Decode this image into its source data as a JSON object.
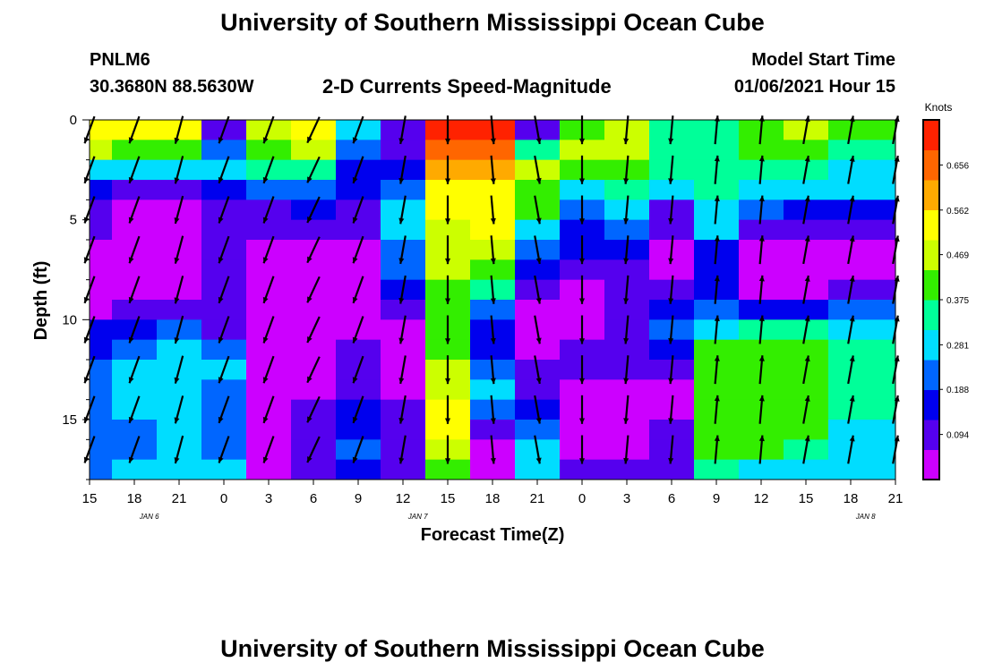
{
  "header": {
    "title": "University of Southern Mississippi Ocean Cube",
    "station": "PNLM6",
    "coords": "30.3680N 88.5630W",
    "subtitle": "2-D Currents Speed-Magnitude",
    "model_label": "Model Start Time",
    "model_time": "01/06/2021 Hour 15",
    "footer_title": "University of Southern Mississippi Ocean Cube"
  },
  "colors": {
    "scale": [
      "#cc00ff",
      "#5500ee",
      "#0000ee",
      "#0066ff",
      "#00ddff",
      "#00ff99",
      "#33ee00",
      "#ccff00",
      "#ffff00",
      "#ffaa00",
      "#ff6600",
      "#ff2200"
    ]
  },
  "chart_data": {
    "type": "heatmap",
    "xlabel": "Forecast Time(Z)",
    "ylabel": "Depth (ft)",
    "x_ticks": [
      "15",
      "18",
      "21",
      "0",
      "3",
      "6",
      "9",
      "12",
      "15",
      "18",
      "21",
      "0",
      "3",
      "6",
      "9",
      "12",
      "15",
      "18",
      "21"
    ],
    "date_labels": [
      {
        "label": "JAN 6",
        "hour_index": 4
      },
      {
        "label": "JAN 7",
        "hour_index": 22
      },
      {
        "label": "JAN 8",
        "hour_index": 52
      }
    ],
    "y_ticks": [
      "0",
      "5",
      "10",
      "15"
    ],
    "ylim": [
      18,
      0
    ],
    "x_hours": [
      0,
      54
    ],
    "colorbar": {
      "unit": "Knots",
      "range": [
        0,
        0.75
      ],
      "ticks": [
        "0.094",
        "0.188",
        "0.281",
        "0.375",
        "0.469",
        "0.562",
        "0.656"
      ]
    },
    "columns": [
      {
        "t": 0,
        "v": [
          0.55,
          0.45,
          0.28,
          0.18,
          0.12,
          0.08,
          0.06,
          0.06,
          0.06,
          0.06,
          0.13,
          0.17,
          0.2,
          0.2,
          0.22,
          0.22,
          0.2,
          0.22
        ],
        "dir": 200
      },
      {
        "t": 3,
        "v": [
          0.55,
          0.42,
          0.25,
          0.12,
          0.05,
          0.03,
          0.02,
          0.05,
          0.05,
          0.08,
          0.15,
          0.22,
          0.25,
          0.25,
          0.25,
          0.22,
          0.22,
          0.25
        ],
        "dir": 200
      },
      {
        "t": 6,
        "v": [
          0.5,
          0.4,
          0.25,
          0.1,
          0.04,
          0.02,
          0.02,
          0.05,
          0.06,
          0.1,
          0.2,
          0.25,
          0.28,
          0.25,
          0.25,
          0.25,
          0.25,
          0.28
        ],
        "dir": 195
      },
      {
        "t": 9,
        "v": [
          0.12,
          0.2,
          0.3,
          0.18,
          0.1,
          0.1,
          0.12,
          0.12,
          0.1,
          0.1,
          0.12,
          0.2,
          0.25,
          0.2,
          0.2,
          0.2,
          0.2,
          0.25
        ],
        "dir": 200
      },
      {
        "t": 12,
        "v": [
          0.45,
          0.4,
          0.35,
          0.2,
          0.12,
          0.08,
          0.06,
          0.04,
          0.03,
          0.04,
          0.04,
          0.04,
          0.05,
          0.06,
          0.06,
          0.06,
          0.06,
          0.06
        ],
        "dir": 200
      },
      {
        "t": 15,
        "v": [
          0.5,
          0.45,
          0.35,
          0.22,
          0.15,
          0.08,
          0.05,
          0.03,
          0.03,
          0.03,
          0.03,
          0.04,
          0.05,
          0.06,
          0.08,
          0.1,
          0.1,
          0.1
        ],
        "dir": 205
      },
      {
        "t": 18,
        "v": [
          0.25,
          0.2,
          0.18,
          0.15,
          0.12,
          0.08,
          0.06,
          0.05,
          0.04,
          0.04,
          0.06,
          0.08,
          0.1,
          0.12,
          0.15,
          0.18,
          0.2,
          0.15
        ],
        "dir": 200
      },
      {
        "t": 21,
        "v": [
          0.08,
          0.1,
          0.15,
          0.2,
          0.25,
          0.25,
          0.22,
          0.2,
          0.15,
          0.1,
          0.05,
          0.04,
          0.04,
          0.06,
          0.1,
          0.12,
          0.1,
          0.08
        ],
        "dir": 190
      },
      {
        "t": 24,
        "v": [
          0.7,
          0.65,
          0.6,
          0.55,
          0.5,
          0.48,
          0.48,
          0.45,
          0.4,
          0.38,
          0.4,
          0.42,
          0.45,
          0.48,
          0.5,
          0.5,
          0.45,
          0.4
        ],
        "dir": 180
      },
      {
        "t": 27,
        "v": [
          0.7,
          0.65,
          0.6,
          0.55,
          0.55,
          0.5,
          0.45,
          0.4,
          0.35,
          0.2,
          0.15,
          0.15,
          0.2,
          0.25,
          0.2,
          0.1,
          0.05,
          0.05
        ],
        "dir": 175
      },
      {
        "t": 30,
        "v": [
          0.1,
          0.35,
          0.45,
          0.4,
          0.38,
          0.3,
          0.2,
          0.15,
          0.1,
          0.06,
          0.05,
          0.05,
          0.08,
          0.12,
          0.15,
          0.2,
          0.25,
          0.3
        ],
        "dir": 170
      },
      {
        "t": 33,
        "v": [
          0.4,
          0.45,
          0.42,
          0.3,
          0.2,
          0.18,
          0.15,
          0.1,
          0.06,
          0.05,
          0.05,
          0.08,
          0.12,
          0.05,
          0.03,
          0.03,
          0.06,
          0.1
        ],
        "dir": 180
      },
      {
        "t": 36,
        "v": [
          0.45,
          0.48,
          0.4,
          0.35,
          0.28,
          0.2,
          0.18,
          0.12,
          0.1,
          0.08,
          0.1,
          0.12,
          0.08,
          0.03,
          0.03,
          0.03,
          0.05,
          0.08
        ],
        "dir": 185
      },
      {
        "t": 39,
        "v": [
          0.35,
          0.35,
          0.32,
          0.25,
          0.12,
          0.08,
          0.06,
          0.06,
          0.1,
          0.18,
          0.2,
          0.18,
          0.08,
          0.04,
          0.06,
          0.08,
          0.1,
          0.1
        ],
        "dir": 185
      },
      {
        "t": 42,
        "v": [
          0.35,
          0.35,
          0.35,
          0.35,
          0.3,
          0.25,
          0.18,
          0.15,
          0.18,
          0.22,
          0.3,
          0.38,
          0.42,
          0.42,
          0.42,
          0.4,
          0.4,
          0.35
        ],
        "dir": 5
      },
      {
        "t": 45,
        "v": [
          0.4,
          0.38,
          0.35,
          0.3,
          0.2,
          0.1,
          0.06,
          0.05,
          0.05,
          0.15,
          0.35,
          0.38,
          0.42,
          0.42,
          0.42,
          0.4,
          0.4,
          0.3
        ],
        "dir": 5
      },
      {
        "t": 48,
        "v": [
          0.45,
          0.4,
          0.35,
          0.3,
          0.15,
          0.08,
          0.06,
          0.05,
          0.06,
          0.18,
          0.35,
          0.38,
          0.4,
          0.4,
          0.4,
          0.38,
          0.35,
          0.3
        ],
        "dir": 10
      },
      {
        "t": 51,
        "v": [
          0.4,
          0.35,
          0.3,
          0.25,
          0.15,
          0.1,
          0.05,
          0.05,
          0.1,
          0.2,
          0.3,
          0.35,
          0.35,
          0.35,
          0.35,
          0.3,
          0.3,
          0.28
        ],
        "dir": 10
      },
      {
        "t": 54,
        "v": [
          0.4,
          0.35,
          0.3,
          0.25,
          0.15,
          0.1,
          0.05,
          0.05,
          0.1,
          0.2,
          0.3,
          0.35,
          0.35,
          0.35,
          0.35,
          0.3,
          0.3,
          0.28
        ],
        "dir": 10
      }
    ]
  }
}
